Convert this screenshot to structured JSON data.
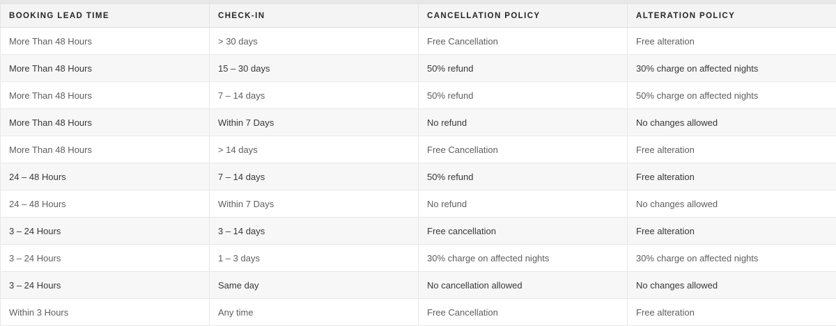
{
  "table": {
    "columns": [
      {
        "label": "BOOKING LEAD TIME"
      },
      {
        "label": "CHECK-IN"
      },
      {
        "label": "CANCELLATION POLICY"
      },
      {
        "label": "ALTERATION POLICY"
      }
    ],
    "rows": [
      [
        "More Than 48 Hours",
        "> 30 days",
        "Free Cancellation",
        "Free alteration"
      ],
      [
        "More Than 48 Hours",
        "15 – 30 days",
        "50% refund",
        "30% charge on affected nights"
      ],
      [
        "More Than 48 Hours",
        "7 – 14 days",
        "50% refund",
        "50% charge on affected nights"
      ],
      [
        "More Than 48 Hours",
        "Within 7 Days",
        "No refund",
        "No changes allowed"
      ],
      [
        "More Than 48 Hours",
        "> 14 days",
        "Free Cancellation",
        "Free alteration"
      ],
      [
        "24 – 48 Hours",
        "7 – 14 days",
        "50% refund",
        "Free alteration"
      ],
      [
        "24 – 48 Hours",
        "Within 7 Days",
        "No refund",
        "No changes allowed"
      ],
      [
        "3 – 24 Hours",
        "3 – 14 days",
        "Free cancellation",
        "Free alteration"
      ],
      [
        "3 – 24 Hours",
        "1 – 3 days",
        "30% charge on affected nights",
        "30% charge on affected nights"
      ],
      [
        "3 – 24 Hours",
        "Same day",
        "No cancellation allowed",
        "No changes allowed"
      ],
      [
        "Within 3 Hours",
        "Any time",
        "Free Cancellation",
        "Free alteration"
      ]
    ],
    "colors": {
      "top_strip": "#e8e8e8",
      "header_bg": "#f4f4f4",
      "stripe_bg": "#f7f7f7",
      "row_border": "#e7e7e7",
      "header_text": "#262626",
      "row_text": "#5e5e5e",
      "stripe_row_text": "#373737"
    }
  }
}
